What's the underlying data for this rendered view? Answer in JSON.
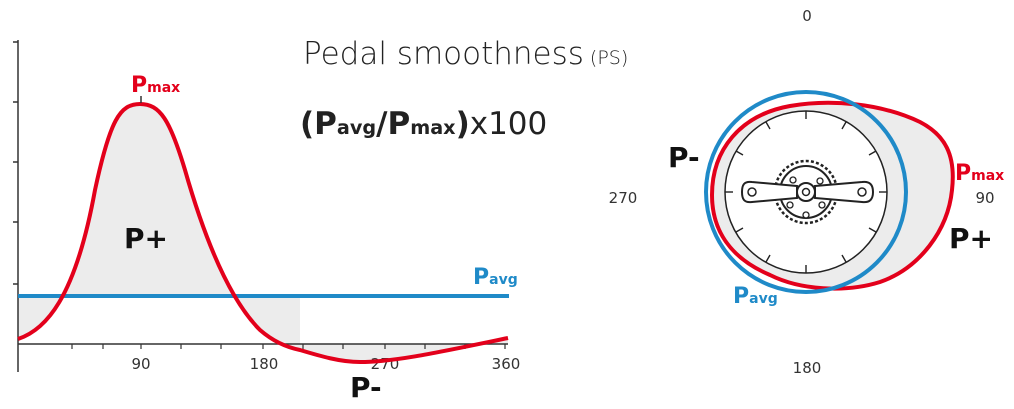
{
  "title": {
    "main": "Pedal smoothness",
    "abbr": "(PS)"
  },
  "formula": {
    "open": "(",
    "p1": "P",
    "p1_sub": "avg",
    "slash": "/",
    "p2": "P",
    "p2_sub": "max",
    "close": ")",
    "times": "x100"
  },
  "curve_chart": {
    "x_ticks": [
      "90",
      "180",
      "270",
      "360"
    ],
    "labels": {
      "pmax": "P",
      "pmax_sub": "max",
      "pavg": "P",
      "pavg_sub": "avg",
      "p_plus": "P+",
      "p_minus": "P-"
    }
  },
  "polar_chart": {
    "angles": {
      "top": "0",
      "right": "90",
      "bottom": "180",
      "left": "270"
    },
    "labels": {
      "pmax": "P",
      "pmax_sub": "max",
      "pavg": "P",
      "pavg_sub": "avg",
      "p_plus": "P+",
      "p_minus": "P-"
    }
  },
  "colors": {
    "pmax": "#e3001b",
    "pavg": "#1f8ac8",
    "axis": "#333333",
    "fill": "#ececec"
  }
}
